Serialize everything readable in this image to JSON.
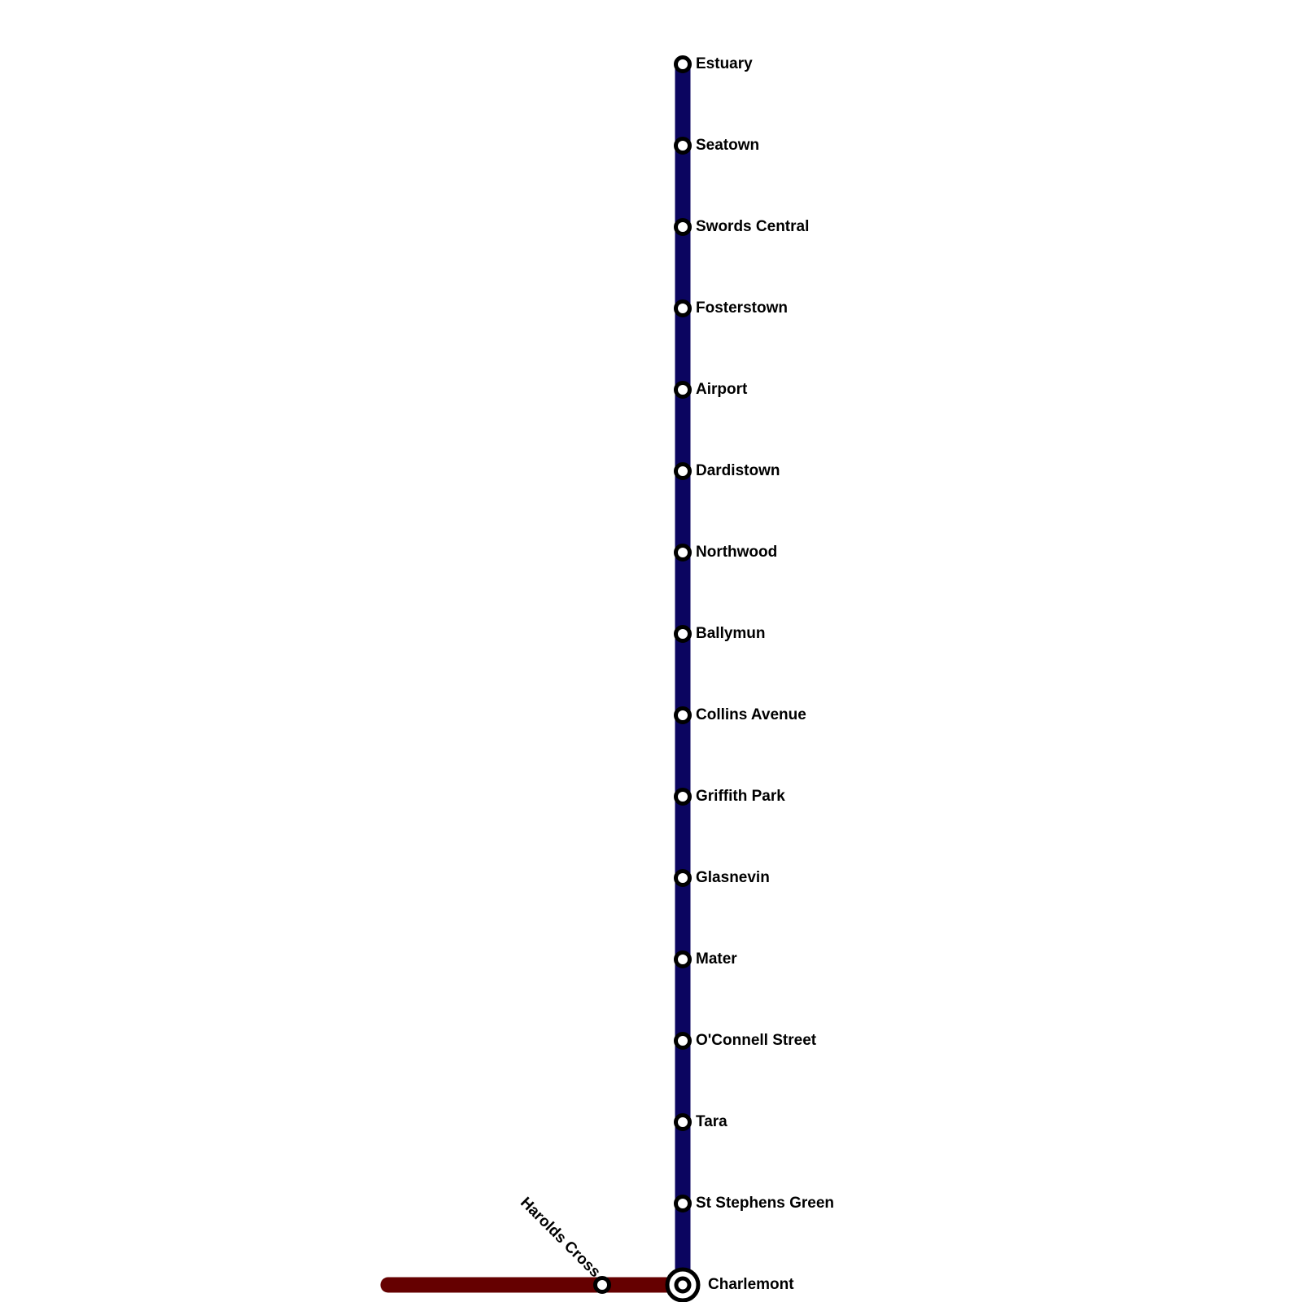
{
  "lines": [
    {
      "color": "#0b0560"
    },
    {
      "color": "#650000"
    }
  ],
  "stations": [
    "Estuary",
    "Seatown",
    "Swords Central",
    "Fosterstown",
    "Airport",
    "Dardistown",
    "Northwood",
    "Ballymun",
    "Collins Avenue",
    "Griffith Park",
    "Glasnevin",
    "Mater",
    "O'Connell Street",
    "Tara",
    "St Stephens Green"
  ],
  "interchange": "Charlemont",
  "branch_station": "Harolds Cross"
}
